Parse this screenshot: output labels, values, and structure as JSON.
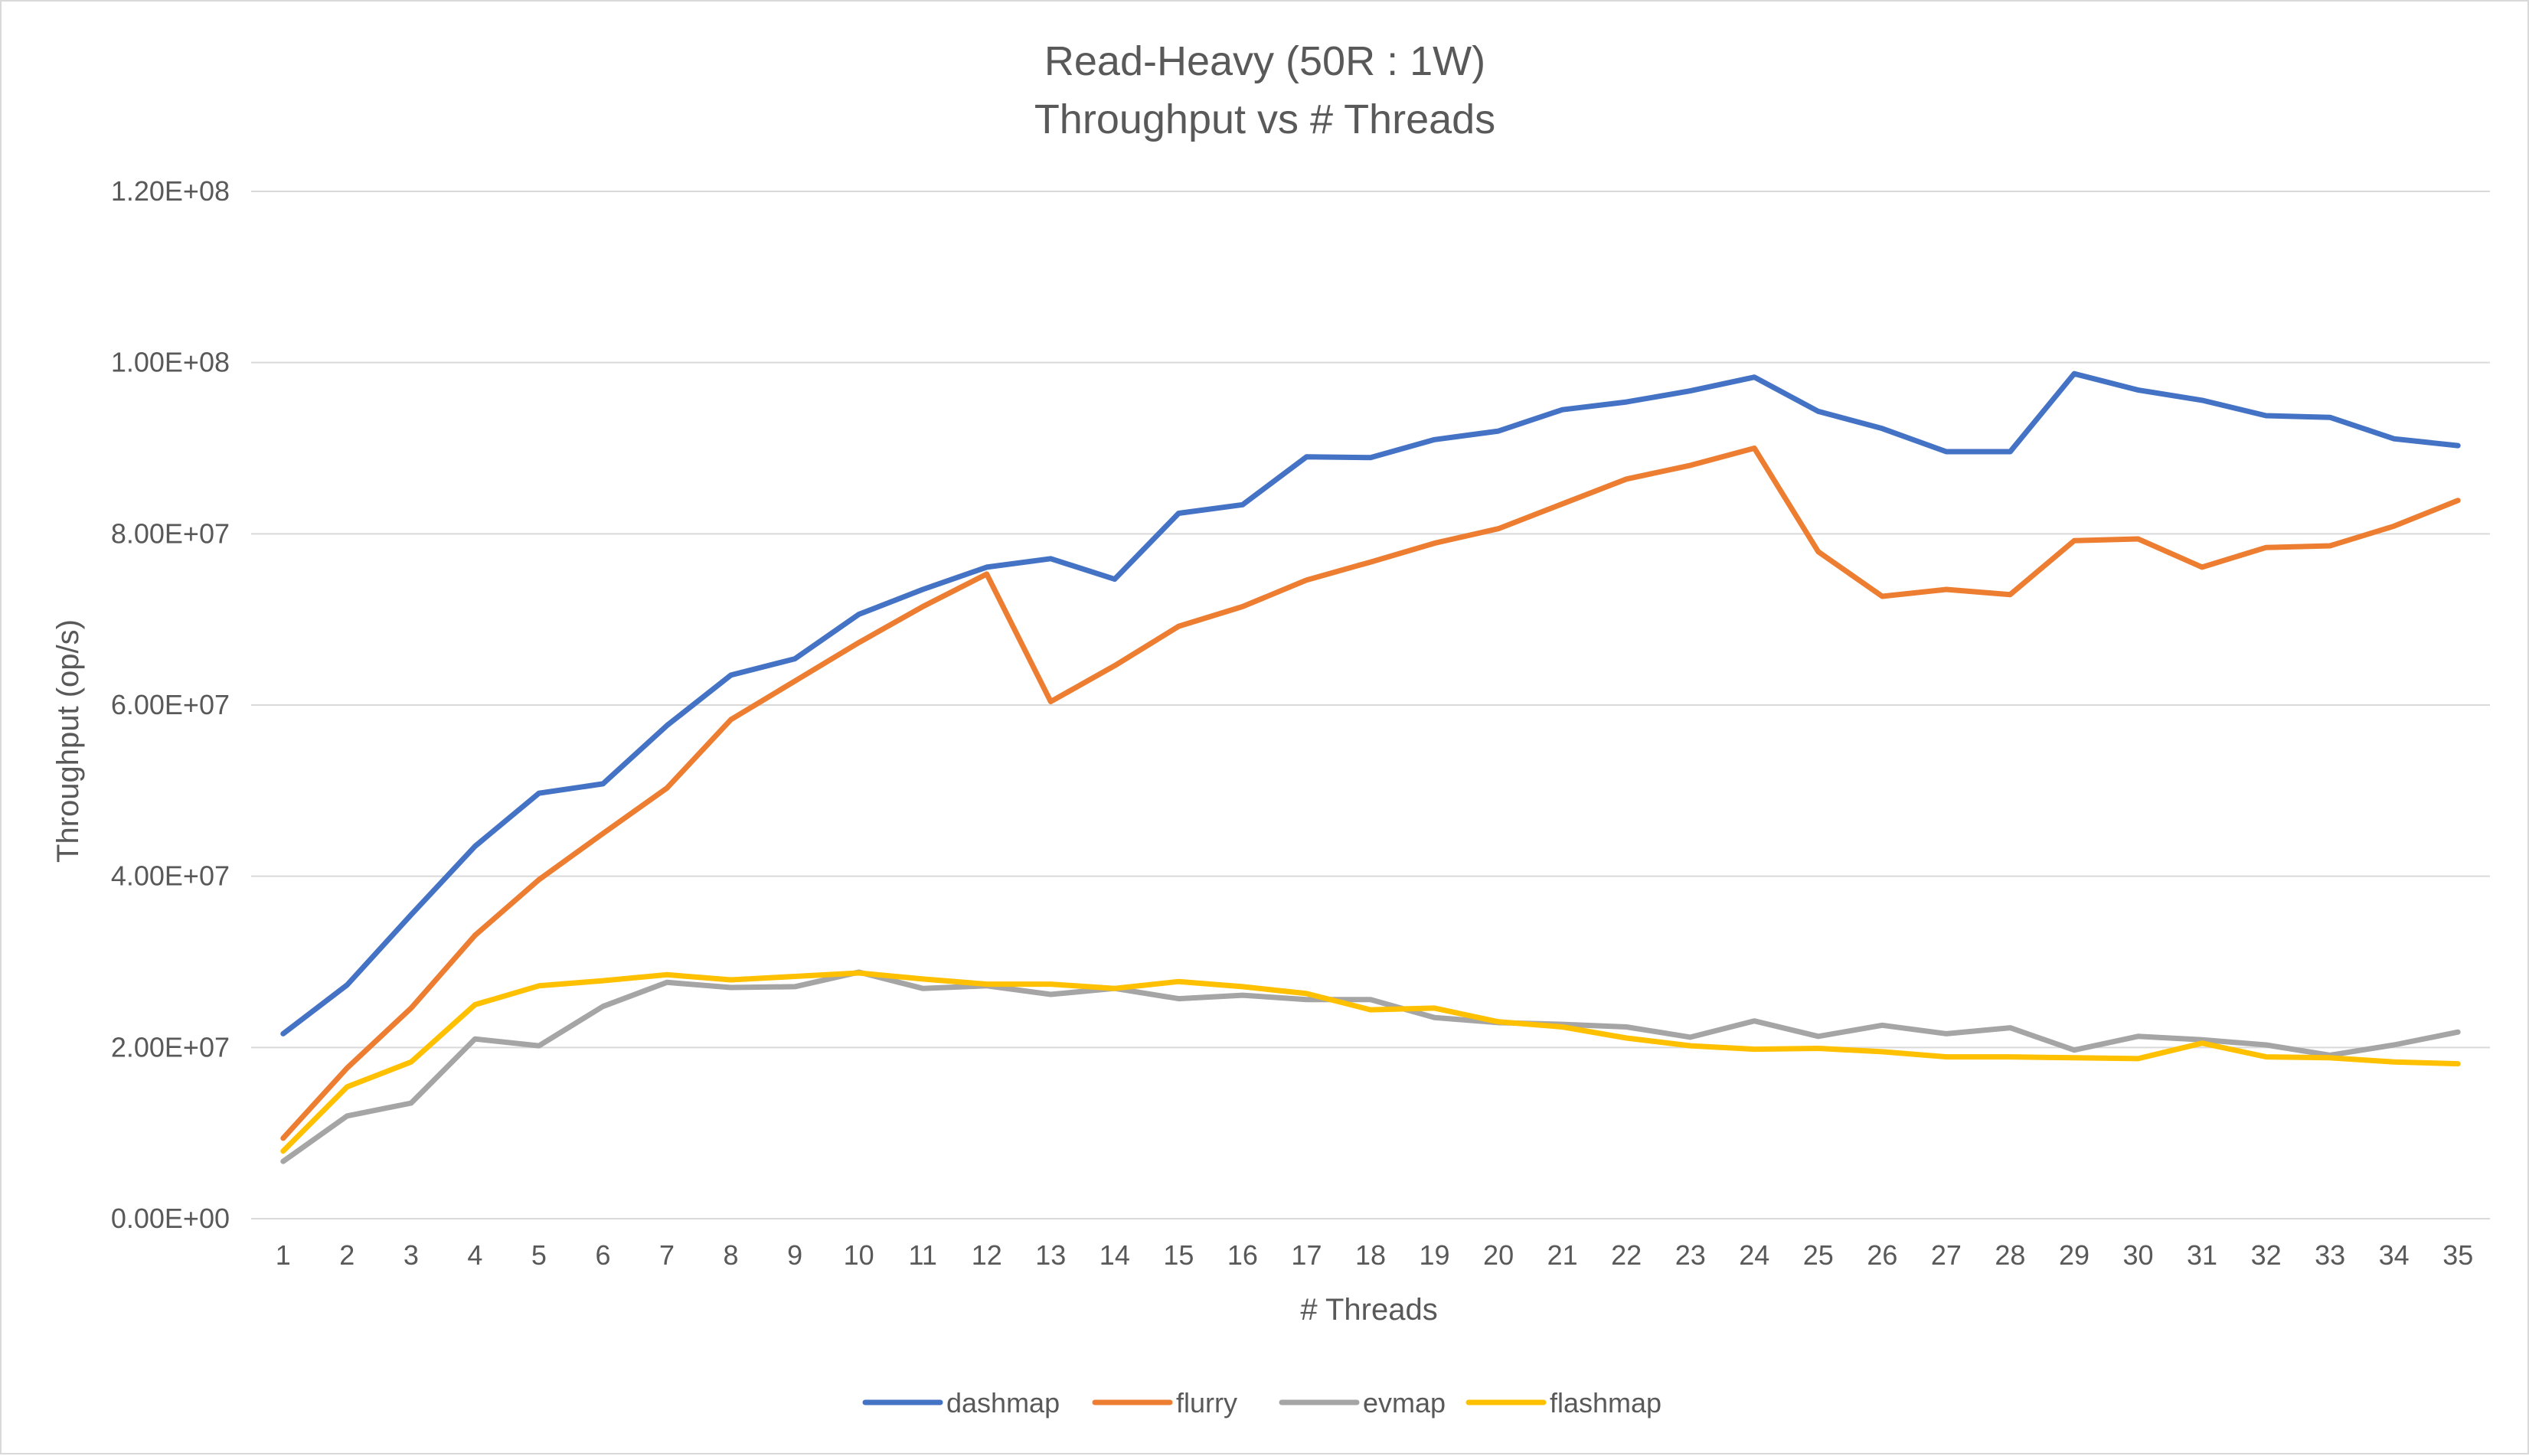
{
  "chart_data": {
    "type": "line",
    "title": "Read-Heavy (50R : 1W)",
    "subtitle": "Throughput vs # Threads",
    "xlabel": "# Threads",
    "ylabel": "Throughput (op/s)",
    "ylim": [
      0,
      120000000
    ],
    "y_ticks": [
      0,
      20000000,
      40000000,
      60000000,
      80000000,
      100000000,
      120000000
    ],
    "y_tick_labels": [
      "0.00E+00",
      "2.00E+07",
      "4.00E+07",
      "6.00E+07",
      "8.00E+07",
      "1.00E+08",
      "1.20E+08"
    ],
    "grid": true,
    "legend_position": "bottom",
    "categories": [
      "1",
      "2",
      "3",
      "4",
      "5",
      "6",
      "7",
      "8",
      "9",
      "10",
      "11",
      "12",
      "13",
      "14",
      "15",
      "16",
      "17",
      "18",
      "19",
      "20",
      "21",
      "22",
      "23",
      "24",
      "25",
      "26",
      "27",
      "28",
      "29",
      "30",
      "31",
      "32",
      "33",
      "34",
      "35"
    ],
    "series": [
      {
        "name": "dashmap",
        "color": "#4472c4",
        "values": [
          21600000,
          27300000,
          35500000,
          43500000,
          49700000,
          50800000,
          57600000,
          63500000,
          65400000,
          70600000,
          73500000,
          76100000,
          77100000,
          74700000,
          82400000,
          83400000,
          89000000,
          88900000,
          91000000,
          92000000,
          94500000,
          95400000,
          96700000,
          98300000,
          94300000,
          92300000,
          89600000,
          89600000,
          98700000,
          96800000,
          95600000,
          93800000,
          93600000,
          91100000,
          90300000
        ]
      },
      {
        "name": "flurry",
        "color": "#ed7d31",
        "values": [
          9400000,
          17600000,
          24600000,
          33100000,
          39600000,
          45000000,
          50300000,
          58300000,
          62800000,
          67300000,
          71500000,
          75300000,
          60400000,
          64600000,
          69200000,
          71500000,
          74600000,
          76700000,
          78900000,
          80600000,
          83500000,
          86400000,
          88000000,
          90000000,
          77900000,
          72700000,
          73500000,
          72900000,
          79200000,
          79400000,
          76100000,
          78400000,
          78600000,
          80900000,
          83900000
        ]
      },
      {
        "name": "evmap",
        "color": "#a5a5a5",
        "values": [
          6700000,
          12000000,
          13500000,
          21000000,
          20200000,
          24800000,
          27600000,
          27000000,
          27100000,
          28800000,
          26900000,
          27200000,
          26200000,
          26900000,
          25700000,
          26100000,
          25600000,
          25600000,
          23500000,
          22900000,
          22700000,
          22400000,
          21200000,
          23100000,
          21300000,
          22600000,
          21600000,
          22300000,
          19700000,
          21300000,
          20900000,
          20300000,
          19100000,
          20300000,
          21800000
        ]
      },
      {
        "name": "flashmap",
        "color": "#ffc000",
        "values": [
          7900000,
          15400000,
          18300000,
          25000000,
          27200000,
          27800000,
          28500000,
          27900000,
          28300000,
          28700000,
          28000000,
          27400000,
          27400000,
          26900000,
          27700000,
          27100000,
          26300000,
          24400000,
          24600000,
          23000000,
          22400000,
          21100000,
          20200000,
          19800000,
          19900000,
          19500000,
          18900000,
          18900000,
          18800000,
          18700000,
          20500000,
          18900000,
          18800000,
          18300000,
          18100000
        ]
      }
    ]
  }
}
